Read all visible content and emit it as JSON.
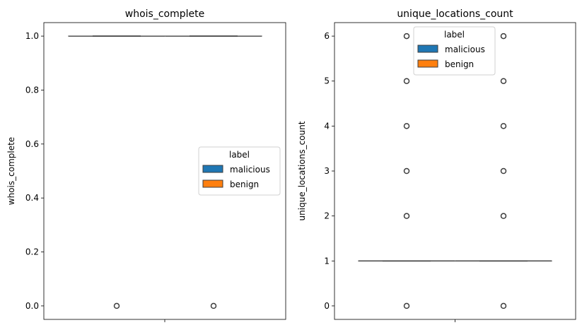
{
  "chart_data": [
    {
      "type": "box",
      "title": "whois_complete",
      "xlabel": "",
      "ylabel": "whois_complete",
      "ylim": [
        -0.05,
        1.05
      ],
      "yticks": [
        0.0,
        0.2,
        0.4,
        0.6,
        0.8,
        1.0
      ],
      "ytick_labels": [
        "0.0",
        "0.2",
        "0.4",
        "0.6",
        "0.8",
        "1.0"
      ],
      "grid": false,
      "legend": {
        "title": "label",
        "placement": "center-right"
      },
      "series": [
        {
          "name": "malicious",
          "color": "#1f77b4",
          "box": {
            "whislo": 1.0,
            "q1": 1.0,
            "median": 1.0,
            "q3": 1.0,
            "whishi": 1.0
          },
          "outliers": [
            0.0
          ]
        },
        {
          "name": "benign",
          "color": "#ff7f0e",
          "box": {
            "whislo": 1.0,
            "q1": 1.0,
            "median": 1.0,
            "q3": 1.0,
            "whishi": 1.0
          },
          "outliers": [
            0.0
          ]
        }
      ]
    },
    {
      "type": "box",
      "title": "unique_locations_count",
      "xlabel": "",
      "ylabel": "unique_locations_count",
      "ylim": [
        -0.3,
        6.3
      ],
      "yticks": [
        0,
        1,
        2,
        3,
        4,
        5,
        6
      ],
      "ytick_labels": [
        "0",
        "1",
        "2",
        "3",
        "4",
        "5",
        "6"
      ],
      "grid": false,
      "legend": {
        "title": "label",
        "placement": "upper-center"
      },
      "series": [
        {
          "name": "malicious",
          "color": "#1f77b4",
          "box": {
            "whislo": 1,
            "q1": 1,
            "median": 1,
            "q3": 1,
            "whishi": 1
          },
          "outliers": [
            0,
            2,
            3,
            4,
            5,
            6
          ]
        },
        {
          "name": "benign",
          "color": "#ff7f0e",
          "box": {
            "whislo": 1,
            "q1": 1,
            "median": 1,
            "q3": 1,
            "whishi": 1
          },
          "outliers": [
            0,
            2,
            3,
            4,
            5,
            6
          ]
        }
      ]
    }
  ]
}
